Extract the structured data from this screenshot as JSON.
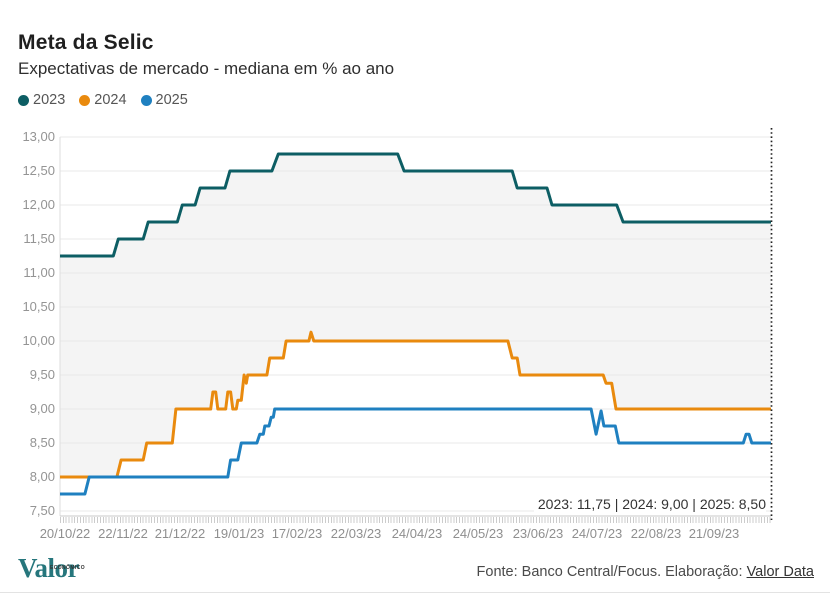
{
  "header": {
    "title": "Meta da Selic",
    "subtitle": "Expectativas de mercado - mediana em % ao ano"
  },
  "legend": [
    {
      "label": "2023",
      "color": "#0d5e64"
    },
    {
      "label": "2024",
      "color": "#e98a0e"
    },
    {
      "label": "2025",
      "color": "#1f80c0"
    }
  ],
  "annotation": {
    "text": "2023: 11,75  |  2024: 9,00  |  2025: 8,50"
  },
  "footer": {
    "logo_text": "Valor",
    "logo_super": "ECONÔMICO",
    "source_prefix": "Fonte: Banco Central/Focus. Elaboração: ",
    "source_link": "Valor Data"
  },
  "chart_data": {
    "type": "line",
    "title": "Meta da Selic",
    "subtitle": "Expectativas de mercado - mediana em % ao ano",
    "ylabel": "% ao ano",
    "ylim": [
      7.5,
      13.0
    ],
    "grid": true,
    "legend_position": "top-left",
    "band_color": "#f4f4f4",
    "y_ticks": [
      {
        "v": 13.0,
        "label": "13,00"
      },
      {
        "v": 12.5,
        "label": "12,50"
      },
      {
        "v": 12.0,
        "label": "12,00"
      },
      {
        "v": 11.5,
        "label": "11,50"
      },
      {
        "v": 11.0,
        "label": "11,00"
      },
      {
        "v": 10.5,
        "label": "10,50"
      },
      {
        "v": 10.0,
        "label": "10,00"
      },
      {
        "v": 9.5,
        "label": "9,50"
      },
      {
        "v": 9.0,
        "label": "9,00"
      },
      {
        "v": 8.5,
        "label": "8,50"
      },
      {
        "v": 8.0,
        "label": "8,00"
      },
      {
        "v": 7.5,
        "label": "7,50"
      }
    ],
    "x_ticks": [
      {
        "f": 0.007,
        "label": "20/10/22"
      },
      {
        "f": 0.089,
        "label": "22/11/22"
      },
      {
        "f": 0.169,
        "label": "21/12/22"
      },
      {
        "f": 0.252,
        "label": "19/01/23"
      },
      {
        "f": 0.333,
        "label": "17/02/23"
      },
      {
        "f": 0.416,
        "label": "22/03/23"
      },
      {
        "f": 0.502,
        "label": "24/04/23"
      },
      {
        "f": 0.588,
        "label": "24/05/23"
      },
      {
        "f": 0.672,
        "label": "23/06/23"
      },
      {
        "f": 0.755,
        "label": "24/07/23"
      },
      {
        "f": 0.838,
        "label": "22/08/23"
      },
      {
        "f": 0.92,
        "label": "21/09/23"
      }
    ],
    "series": [
      {
        "name": "2023",
        "color": "#0d5e64",
        "final_value": 11.75,
        "points": [
          [
            0,
            11.25
          ],
          [
            0.075,
            11.25
          ],
          [
            0.082,
            11.5
          ],
          [
            0.117,
            11.5
          ],
          [
            0.124,
            11.75
          ],
          [
            0.165,
            11.75
          ],
          [
            0.172,
            12.0
          ],
          [
            0.19,
            12.0
          ],
          [
            0.197,
            12.25
          ],
          [
            0.232,
            12.25
          ],
          [
            0.239,
            12.5
          ],
          [
            0.298,
            12.5
          ],
          [
            0.307,
            12.75
          ],
          [
            0.475,
            12.75
          ],
          [
            0.484,
            12.5
          ],
          [
            0.636,
            12.5
          ],
          [
            0.643,
            12.25
          ],
          [
            0.685,
            12.25
          ],
          [
            0.692,
            12.0
          ],
          [
            0.783,
            12.0
          ],
          [
            0.792,
            11.75
          ],
          [
            1,
            11.75
          ]
        ]
      },
      {
        "name": "2024",
        "color": "#e98a0e",
        "final_value": 9.0,
        "points": [
          [
            0,
            8.0
          ],
          [
            0.08,
            8.0
          ],
          [
            0.086,
            8.25
          ],
          [
            0.117,
            8.25
          ],
          [
            0.122,
            8.5
          ],
          [
            0.158,
            8.5
          ],
          [
            0.163,
            9.0
          ],
          [
            0.212,
            9.0
          ],
          [
            0.215,
            9.25
          ],
          [
            0.219,
            9.25
          ],
          [
            0.222,
            9.0
          ],
          [
            0.233,
            9.0
          ],
          [
            0.236,
            9.25
          ],
          [
            0.24,
            9.25
          ],
          [
            0.243,
            9.0
          ],
          [
            0.248,
            9.0
          ],
          [
            0.25,
            9.13
          ],
          [
            0.255,
            9.13
          ],
          [
            0.259,
            9.5
          ],
          [
            0.262,
            9.38
          ],
          [
            0.264,
            9.5
          ],
          [
            0.291,
            9.5
          ],
          [
            0.295,
            9.75
          ],
          [
            0.314,
            9.75
          ],
          [
            0.318,
            10.0
          ],
          [
            0.35,
            10.0
          ],
          [
            0.353,
            10.13
          ],
          [
            0.357,
            10.0
          ],
          [
            0.63,
            10.0
          ],
          [
            0.636,
            9.75
          ],
          [
            0.643,
            9.75
          ],
          [
            0.647,
            9.5
          ],
          [
            0.764,
            9.5
          ],
          [
            0.768,
            9.38
          ],
          [
            0.776,
            9.38
          ],
          [
            0.782,
            9.0
          ],
          [
            1,
            9.0
          ]
        ]
      },
      {
        "name": "2025",
        "color": "#1f80c0",
        "final_value": 8.5,
        "points": [
          [
            0,
            7.75
          ],
          [
            0.035,
            7.75
          ],
          [
            0.041,
            8.0
          ],
          [
            0.236,
            8.0
          ],
          [
            0.24,
            8.25
          ],
          [
            0.25,
            8.25
          ],
          [
            0.255,
            8.5
          ],
          [
            0.277,
            8.5
          ],
          [
            0.281,
            8.63
          ],
          [
            0.286,
            8.63
          ],
          [
            0.288,
            8.75
          ],
          [
            0.294,
            8.75
          ],
          [
            0.297,
            8.88
          ],
          [
            0.3,
            8.88
          ],
          [
            0.302,
            9.0
          ],
          [
            0.747,
            9.0
          ],
          [
            0.754,
            8.63
          ],
          [
            0.761,
            8.97
          ],
          [
            0.765,
            8.75
          ],
          [
            0.781,
            8.75
          ],
          [
            0.786,
            8.5
          ],
          [
            0.961,
            8.5
          ],
          [
            0.965,
            8.63
          ],
          [
            0.969,
            8.63
          ],
          [
            0.973,
            8.5
          ],
          [
            1,
            8.5
          ]
        ]
      }
    ],
    "end_line_label": "2023: 11,75  |  2024: 9,00  |  2025: 8,50",
    "layout": {
      "plot_left": 60,
      "plot_right": 771,
      "plot_top": 137,
      "plot_bottom": 511,
      "axis_y": 516,
      "cutoff_top": 128,
      "cutoff_bottom": 520
    }
  }
}
